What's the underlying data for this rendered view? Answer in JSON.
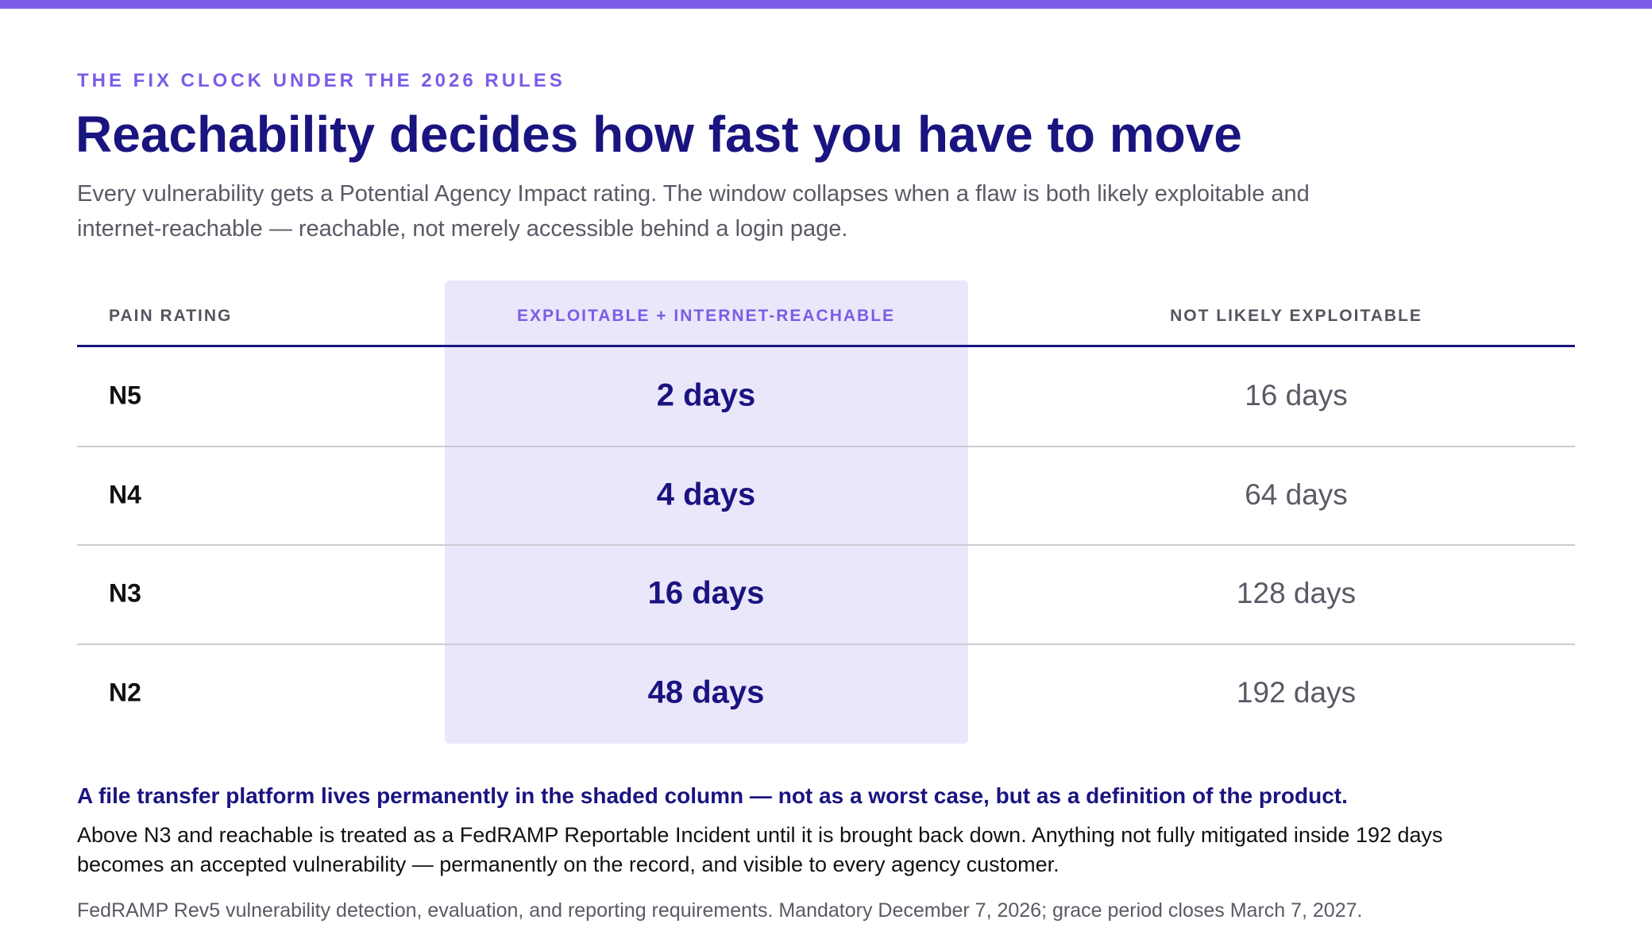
{
  "header": {
    "eyebrow": "THE FIX CLOCK UNDER THE 2026 RULES",
    "title": "Reachability decides how fast you have to move",
    "subtitle": "Every vulnerability gets a Potential Agency Impact rating. The window collapses when a flaw is both likely exploitable and internet-reachable — reachable, not merely accessible behind a login page."
  },
  "table": {
    "columns": [
      "PAIN RATING",
      "EXPLOITABLE + INTERNET-REACHABLE",
      "NOT LIKELY EXPLOITABLE"
    ],
    "rows": [
      [
        "N5",
        "2 days",
        "16 days"
      ],
      [
        "N4",
        "4 days",
        "64 days"
      ],
      [
        "N3",
        "16 days",
        "128 days"
      ],
      [
        "N2",
        "48 days",
        "192 days"
      ]
    ]
  },
  "note": {
    "headline": "A file transfer platform lives permanently in the shaded column — not as a worst case, but as a definition of the product.",
    "body": "Above N3 and reachable is treated as a FedRAMP Reportable Incident until it is brought back down. Anything not fully mitigated inside 192 days becomes an accepted vulnerability — permanently on the record, and visible to every agency customer."
  },
  "footnote": "FedRAMP Rev5 vulnerability detection, evaluation, and reporting requirements. Mandatory December 7, 2026; grace period closes March 7, 2027."
}
